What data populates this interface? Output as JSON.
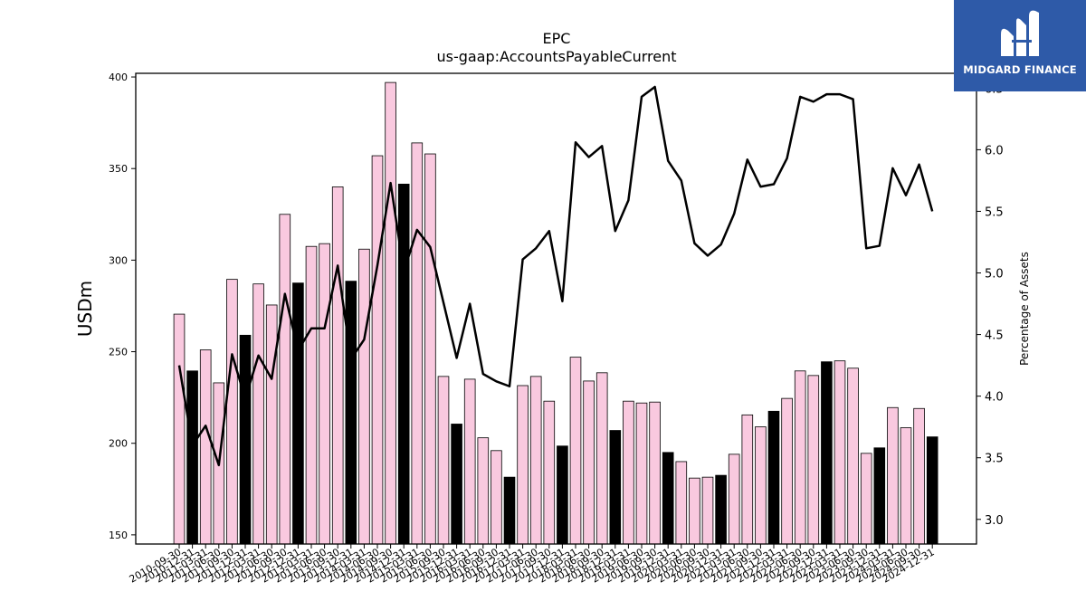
{
  "chart_data": {
    "type": "bar",
    "title": "EPC",
    "subtitle": "us-gaap:AccountsPayableCurrent",
    "ylabel": "USDm",
    "y2label": "Percentage of Assets",
    "ylim": [
      145,
      402
    ],
    "y2lim": [
      2.8,
      6.62
    ],
    "yticks": [
      150,
      200,
      250,
      300,
      350,
      400
    ],
    "y2ticks": [
      "3.0",
      "3.5",
      "4.0",
      "4.5",
      "5.0",
      "5.5",
      "6.0",
      "6.5"
    ],
    "colors": {
      "bar_default": "#f9c9df",
      "bar_highlight": "#000000",
      "line": "#000000"
    },
    "categories": [
      "2010-09-30",
      "2010-12-31",
      "2011-03-31",
      "2011-06-30",
      "2011-09-30",
      "2011-12-31",
      "2012-03-31",
      "2012-06-30",
      "2012-09-30",
      "2012-12-31",
      "2013-03-31",
      "2013-06-30",
      "2013-09-30",
      "2013-12-31",
      "2014-03-31",
      "2014-06-30",
      "2014-09-30",
      "2014-12-31",
      "2015-03-31",
      "2015-06-30",
      "2015-09-30",
      "2015-12-31",
      "2016-03-31",
      "2016-06-30",
      "2016-09-30",
      "2016-12-31",
      "2017-03-31",
      "2017-06-30",
      "2017-09-30",
      "2017-12-31",
      "2018-03-31",
      "2018-06-30",
      "2018-09-30",
      "2018-12-31",
      "2019-03-31",
      "2019-06-30",
      "2019-09-30",
      "2019-12-31",
      "2020-03-31",
      "2020-06-30",
      "2020-09-30",
      "2020-12-31",
      "2021-03-31",
      "2021-06-30",
      "2021-09-30",
      "2021-12-31",
      "2022-03-31",
      "2022-06-30",
      "2022-09-30",
      "2022-12-31",
      "2023-03-31",
      "2023-06-30",
      "2023-09-30",
      "2023-12-31",
      "2024-03-31",
      "2024-06-30",
      "2024-09-30",
      "2024-12-31"
    ],
    "x_tick_labels": [
      "2010-09-30",
      "2010-12-31",
      "2011-03-31",
      "2011-06-30",
      "2011-09-30",
      "2011-12-31",
      "2012-03-31",
      "2012-06-30",
      "2012-09-30",
      "2012-12-31",
      "2013-03-31",
      "2013-06-30",
      "2013-09-30",
      "2013-12-31",
      "2014-03-31",
      "2014-06-30",
      "2014-09-30",
      "2014-12-31",
      "2015-03-31",
      "2015-06-30",
      "2015-09-30",
      "2015-12-31",
      "2016-03-31",
      "2016-06-30",
      "2016-09-30",
      "2016-12-31",
      "2017-03-31",
      "2017-06-30",
      "2017-09-30",
      "2017-12-31",
      "2018-03-31",
      "2018-06-30",
      "2018-09-30",
      "2018-12-31",
      "2019-03-31",
      "2019-06-30",
      "2019-09-30",
      "2019-12-31",
      "2020-03-31",
      "2020-06-30",
      "2020-09-30",
      "2020-12-31",
      "2021-03-31",
      "2021-06-30",
      "2021-09-30",
      "2021-12-31",
      "2022-03-31",
      "2022-06-30",
      "2022-09-30",
      "2022-12-31",
      "2023-03-31",
      "2023-06-30",
      "2023-09-30",
      "2023-12-31",
      "2024-03-31",
      "2024-06-30",
      "2024-09-30",
      "2024-12-31"
    ],
    "highlight_indices": [
      1,
      5,
      9,
      13,
      17,
      21,
      25,
      29,
      33,
      37,
      41,
      45,
      49,
      53,
      57
    ],
    "series": [
      {
        "type": "bar",
        "values": [
          270.5,
          239.5,
          251,
          233,
          289.5,
          259,
          287,
          275.5,
          325,
          287.5,
          307.5,
          309,
          340,
          288.5,
          306,
          357,
          397,
          341.5,
          364,
          358,
          236.5,
          210.5,
          235,
          203,
          196,
          181.5,
          231.5,
          236.5,
          223,
          198.5,
          247,
          234,
          238.5,
          207,
          223,
          222,
          222.5,
          195,
          190,
          181,
          181.5,
          182.5,
          194,
          215.5,
          209,
          217.5,
          224.5,
          239.5,
          237,
          244.5,
          245,
          241,
          194.5,
          197.5,
          219.5,
          208.5,
          219,
          203.5
        ]
      },
      {
        "type": "line",
        "axis": "right",
        "values": [
          4.25,
          3.6,
          3.76,
          3.44,
          4.34,
          3.98,
          4.33,
          4.14,
          4.83,
          4.37,
          4.55,
          4.55,
          5.06,
          4.3,
          4.46,
          5.06,
          5.73,
          5.01,
          5.35,
          5.21,
          4.76,
          4.31,
          4.75,
          4.18,
          4.12,
          4.08,
          5.11,
          5.2,
          5.34,
          4.77,
          6.06,
          5.94,
          6.03,
          5.34,
          5.59,
          6.43,
          6.51,
          5.91,
          5.75,
          5.24,
          5.14,
          5.23,
          5.48,
          5.92,
          5.7,
          5.72,
          5.93,
          6.43,
          6.39,
          6.45,
          6.45,
          6.41,
          5.2,
          5.22,
          5.85,
          5.63,
          5.88,
          5.5
        ]
      }
    ]
  },
  "logo": {
    "text": "MIDGARD FINANCE",
    "icon": "midgard-m-logo-icon"
  }
}
